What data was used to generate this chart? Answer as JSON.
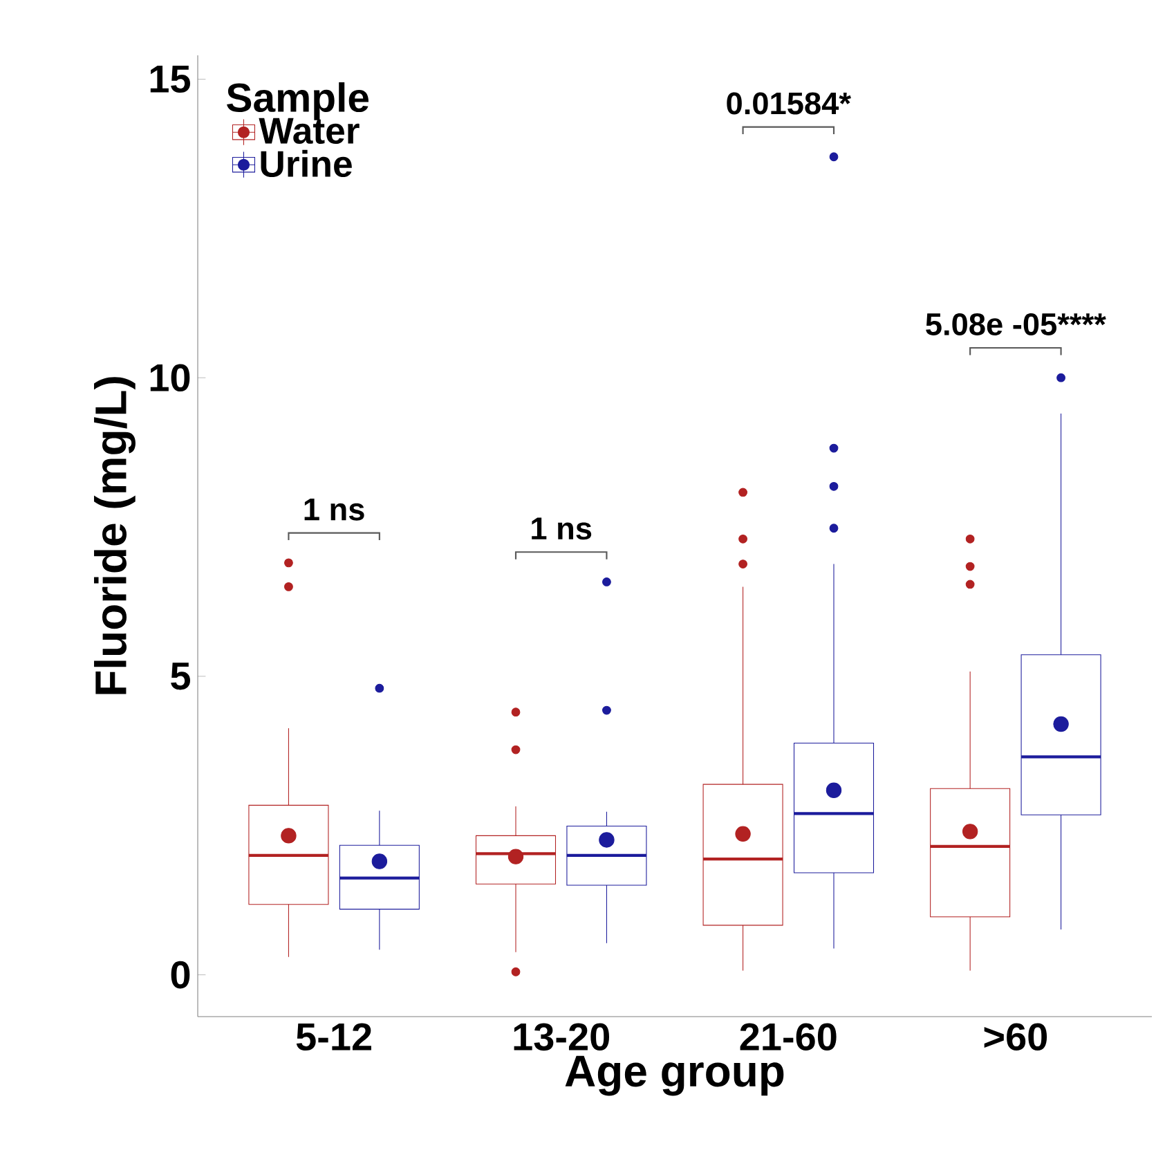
{
  "chart_data": {
    "type": "box",
    "xlabel": "Age group",
    "ylabel": "Fluoride (mg/L)",
    "legend_title": "Sample",
    "legend": "top left",
    "grid": false,
    "categories": [
      "5-12",
      "13-20",
      "21-60",
      ">60"
    ],
    "ylim": [
      -0.7,
      15.4
    ],
    "yticks": [
      0,
      5,
      10,
      15
    ],
    "series": [
      {
        "name": "Water",
        "color": "#b22222",
        "boxes": [
          {
            "low": 0.3,
            "q1": 1.18,
            "median": 2.0,
            "q3": 2.84,
            "high": 4.13,
            "mean": 2.33,
            "outliers": [
              6.9,
              6.5
            ]
          },
          {
            "low": 0.38,
            "q1": 1.52,
            "median": 2.03,
            "q3": 2.33,
            "high": 2.82,
            "mean": 1.98,
            "outliers": [
              4.4,
              3.77,
              0.05
            ]
          },
          {
            "low": 0.07,
            "q1": 0.83,
            "median": 1.94,
            "q3": 3.19,
            "high": 6.5,
            "mean": 2.36,
            "outliers": [
              8.08,
              7.3,
              6.88
            ]
          },
          {
            "low": 0.07,
            "q1": 0.97,
            "median": 2.15,
            "q3": 3.12,
            "high": 5.08,
            "mean": 2.4,
            "outliers": [
              7.3,
              6.84,
              6.54
            ]
          }
        ]
      },
      {
        "name": "Urine",
        "color": "#1c1c9c",
        "boxes": [
          {
            "low": 0.42,
            "q1": 1.1,
            "median": 1.62,
            "q3": 2.17,
            "high": 2.75,
            "mean": 1.9,
            "outliers": [
              4.8
            ]
          },
          {
            "low": 0.53,
            "q1": 1.5,
            "median": 2.0,
            "q3": 2.49,
            "high": 2.73,
            "mean": 2.26,
            "outliers": [
              6.58,
              4.43
            ]
          },
          {
            "low": 0.44,
            "q1": 1.71,
            "median": 2.7,
            "q3": 3.88,
            "high": 6.88,
            "mean": 3.09,
            "outliers": [
              13.7,
              8.82,
              8.18,
              7.48
            ]
          },
          {
            "low": 0.76,
            "q1": 2.68,
            "median": 3.65,
            "q3": 5.36,
            "high": 9.4,
            "mean": 4.2,
            "outliers": [
              10.0
            ]
          }
        ]
      }
    ],
    "annotations": [
      "1 ns",
      "1 ns",
      "0.01584*",
      "5.08e -05****"
    ]
  }
}
